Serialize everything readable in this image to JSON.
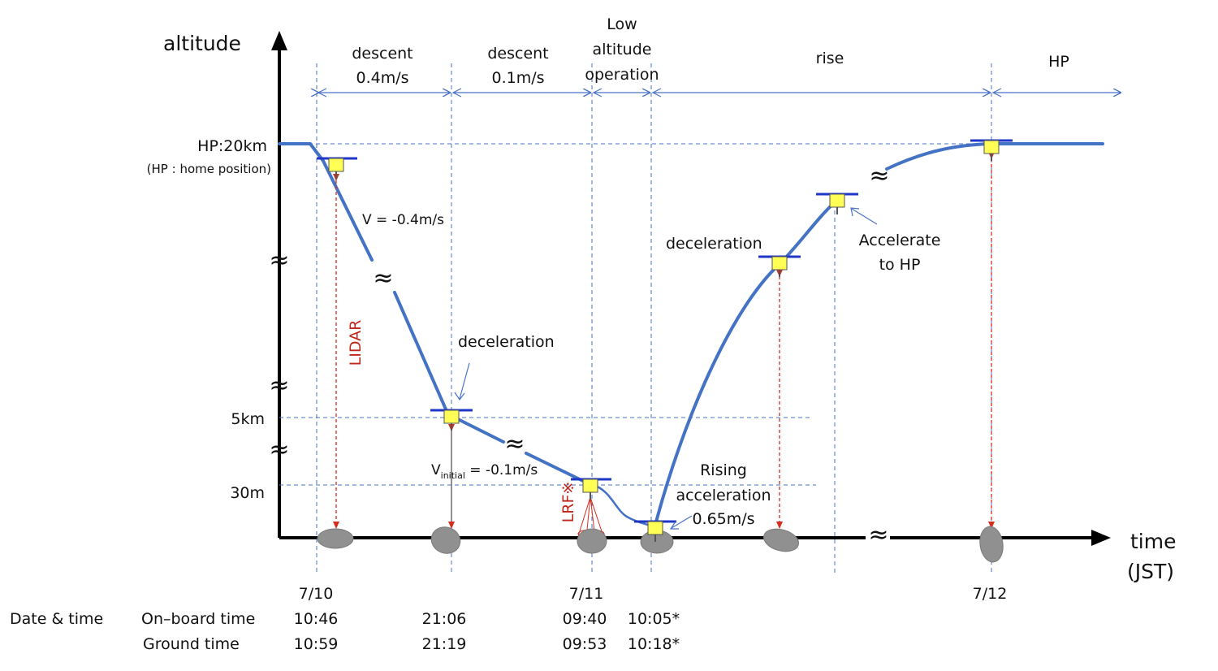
{
  "axes": {
    "y_label": "altitude",
    "x_label_line1": "time",
    "x_label_line2": "(JST)",
    "levels": {
      "hp": "HP:20km",
      "hp_note": "(HP : home position)",
      "five_km": "5km",
      "thirty_m": "30m"
    },
    "break_mark": "≈"
  },
  "phases": {
    "descent1_line1": "descent",
    "descent1_line2": "0.4m/s",
    "descent2_line1": "descent",
    "descent2_line2": "0.1m/s",
    "low_line1": "Low",
    "low_line2": "altitude",
    "low_line3": "operation",
    "rise": "rise",
    "hp": "HP"
  },
  "annotations": {
    "v_descent": "V = -0.4m/s",
    "decel_1": "deceleration",
    "v_initial_prefix": "V",
    "v_initial_sub": "initial",
    "v_initial_suffix": " = -0.1m/s",
    "rising_line1": "Rising",
    "rising_line2": "acceleration",
    "rising_line3": "0.65m/s",
    "decel_2": "deceleration",
    "accel_line1": "Accelerate",
    "accel_line2": "to HP",
    "lidar": "LIDAR",
    "lrf": "LRF※"
  },
  "dates": {
    "d1": "7/10",
    "d2": "7/11",
    "d3": "7/12"
  },
  "table": {
    "row_header": "Date & time",
    "onboard_label": "On–board time",
    "ground_label": "Ground time",
    "onboard": [
      "10:46",
      "21:06",
      "09:40",
      "10:05*"
    ],
    "ground": [
      "10:59",
      "21:19",
      "09:53",
      "10:18*"
    ]
  },
  "colors": {
    "curve": "#4472c4",
    "guide": "#4a72c9",
    "laser": "#d42e1f",
    "craft": "#ffff55",
    "wing": "#1f37c8",
    "rock": "#909090"
  }
}
